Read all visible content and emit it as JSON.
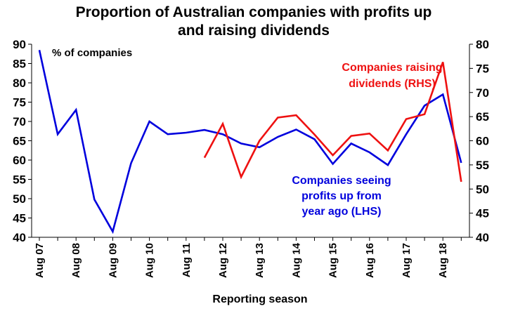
{
  "chart_data": {
    "type": "line",
    "title": "Proportion of Australian companies with profits up and raising dividends",
    "title_lines": [
      "Proportion of Australian companies with profits up",
      "and raising dividends"
    ],
    "xlabel": "Reporting season",
    "ylabel_left": "% of companies",
    "ylim_left": [
      40,
      90
    ],
    "ylim_right": [
      40,
      80
    ],
    "yticks_left": [
      40,
      45,
      50,
      55,
      60,
      65,
      70,
      75,
      80,
      85,
      90
    ],
    "yticks_right": [
      40,
      45,
      50,
      55,
      60,
      65,
      70,
      75,
      80
    ],
    "x_tick_labels": [
      "Aug 07",
      "Aug 08",
      "Aug 09",
      "Aug 10",
      "Aug 11",
      "Aug 12",
      "Aug 13",
      "Aug 14",
      "Aug 15",
      "Aug 16",
      "Aug 17",
      "Aug 18"
    ],
    "grid": false,
    "x": [
      "Aug 07",
      "Feb 08",
      "Aug 08",
      "Feb 09",
      "Aug 09",
      "Feb 10",
      "Aug 10",
      "Feb 11",
      "Aug 11",
      "Feb 12",
      "Aug 12",
      "Feb 13",
      "Aug 13",
      "Feb 14",
      "Aug 14",
      "Feb 15",
      "Aug 15",
      "Feb 16",
      "Aug 16",
      "Feb 17",
      "Aug 17",
      "Feb 18",
      "Aug 18",
      "Feb 19"
    ],
    "series": [
      {
        "name": "Companies seeing profits up from year ago (LHS)",
        "label_lines": [
          "Companies seeing",
          "profits up from",
          "year ago (LHS)"
        ],
        "axis": "left",
        "color": "#0000dd",
        "values": [
          88.5,
          66.7,
          73,
          49.8,
          41.5,
          59.2,
          70,
          66.7,
          67.1,
          67.8,
          66.7,
          64.3,
          63.3,
          66,
          67.9,
          65.4,
          59,
          64.3,
          62,
          58.7,
          66.7,
          74.1,
          77,
          59.3
        ]
      },
      {
        "name": "Companies raising dividends (RHS)",
        "label_lines": [
          "Companies raising",
          "dividends (RHS)"
        ],
        "axis": "right",
        "color": "#ee1111",
        "values": [
          null,
          null,
          null,
          null,
          null,
          null,
          null,
          null,
          null,
          56.5,
          63.5,
          52.5,
          60,
          64.8,
          65.3,
          61.3,
          57,
          61,
          61.5,
          58,
          64.5,
          65.5,
          76.3,
          51.5
        ]
      }
    ]
  }
}
